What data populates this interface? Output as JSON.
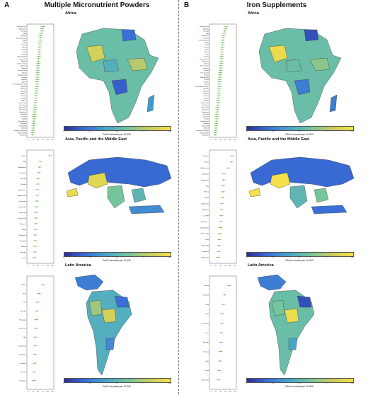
{
  "columns": [
    {
      "letter": "A",
      "title": "Multiple Micronutrient Powders"
    },
    {
      "letter": "B",
      "title": "Iron Supplements"
    }
  ],
  "colors": {
    "dot": "#59a93a",
    "frame": "#666666",
    "map_low": "#2b2f9a",
    "map_high": "#f5e04a",
    "land": "#ffffff"
  },
  "colorbar": {
    "label": "DALYs averted per 10,000",
    "ticks": [
      "0",
      "25",
      "50",
      "75",
      "100"
    ]
  },
  "chart_data": [
    {
      "type": "scatter",
      "column": "A",
      "region": "Africa",
      "title": "Africa",
      "xlim": [
        0,
        125
      ],
      "xticks": [
        "0",
        "25",
        "50",
        "75",
        "100",
        "125"
      ],
      "categories": [
        "Burkina Faso",
        "Mauritania",
        "Senegal",
        "Mali",
        "Gambia",
        "Guinea-Bissau",
        "Niger",
        "Chad",
        "Guinea",
        "Benin",
        "Ghana",
        "Togo",
        "Liberia",
        "Mozambique",
        "Cameroon",
        "Nigeria",
        "Sierra Leone",
        "Comoros",
        "Malawi",
        "Cote d'Ivoire",
        "Kenya",
        "Madagascar",
        "Congo",
        "Zambia",
        "Gabon",
        "Central African Rep.",
        "Uganda",
        "Ethiopia",
        "Rwanda",
        "Tanzania",
        "Eritrea",
        "Lesotho",
        "Angola",
        "Cape Verde",
        "Sao Tome",
        "DR Congo",
        "Botswana",
        "Zimbabwe",
        "Burundi",
        "Somalia",
        "Sudan",
        "South Africa",
        "Namibia",
        "Swaziland",
        "Djibouti",
        "Equatorial Guinea",
        "South Sudan",
        "Mauritius"
      ],
      "values": [
        78,
        72,
        70,
        67,
        64,
        63,
        62,
        61,
        60,
        59,
        58,
        57,
        56,
        55,
        54,
        53,
        52,
        51,
        50,
        49,
        49,
        48,
        47,
        46,
        45,
        45,
        44,
        43,
        42,
        41,
        40,
        39,
        38,
        37,
        36,
        35,
        34,
        33,
        32,
        31,
        30,
        29,
        28,
        27,
        26,
        25,
        24,
        22
      ]
    },
    {
      "type": "scatter",
      "column": "A",
      "region": "Asia, Pacific and the Middle East",
      "title": "Asia, Pacific and the Middle East",
      "xlim": [
        0,
        125
      ],
      "xticks": [
        "0",
        "25",
        "50",
        "75",
        "100",
        "125"
      ],
      "categories": [
        "Yemen",
        "India",
        "Bangladesh",
        "Cambodia",
        "Lao PDR",
        "Pakistan",
        "Solomon Is.",
        "Afghanistan",
        "Kyrgyzstan",
        "Uzbekistan",
        "Papua NG",
        "Timor-Leste",
        "Indonesia",
        "Nepal",
        "Philippines",
        "Mongolia",
        "Bhutan",
        "Tajikistan",
        "China"
      ],
      "values": [
        112,
        62,
        58,
        55,
        52,
        50,
        48,
        46,
        44,
        42,
        41,
        40,
        39,
        38,
        37,
        36,
        35,
        34,
        32
      ]
    },
    {
      "type": "scatter",
      "column": "A",
      "region": "Latin America",
      "title": "Latin America",
      "xlim": [
        0,
        125
      ],
      "xticks": [
        "0",
        "25",
        "50",
        "75",
        "100",
        "125"
      ],
      "categories": [
        "Bolivia",
        "Haiti",
        "Peru",
        "Ecuador",
        "Nicaragua",
        "Saint Lucia",
        "Cuba",
        "Guatemala",
        "Dominican",
        "Paraguay",
        "Colombia",
        "Honduras"
      ],
      "values": [
        78,
        55,
        48,
        44,
        42,
        40,
        38,
        36,
        34,
        32,
        30,
        28
      ]
    },
    {
      "type": "scatter",
      "column": "B",
      "region": "Africa",
      "title": "Africa",
      "xlim": [
        0,
        125
      ],
      "xticks": [
        "0",
        "25",
        "50",
        "75",
        "100",
        "125"
      ],
      "categories": [
        "Burkina Faso",
        "Ethiopia",
        "Senegal",
        "Mali",
        "Mauritania",
        "Gambia",
        "Guinea-Bissau",
        "Niger",
        "Chad",
        "Guinea",
        "Benin",
        "Ghana",
        "Togo",
        "Liberia",
        "Mozambique",
        "Cameroon",
        "Nigeria",
        "Sierra Leone",
        "Comoros",
        "Malawi",
        "Cote d'Ivoire",
        "Kenya",
        "Madagascar",
        "Congo",
        "Zambia",
        "Gabon",
        "Central African Rep.",
        "Uganda",
        "Rwanda",
        "Tanzania",
        "Eritrea",
        "Lesotho",
        "Angola",
        "Cape Verde",
        "Sao Tome",
        "DR Congo",
        "Botswana",
        "Zimbabwe",
        "Burundi",
        "Somalia",
        "Sudan",
        "South Africa",
        "Namibia",
        "Swaziland",
        "Djibouti",
        "Equatorial Guinea",
        "South Sudan",
        "Mauritius"
      ],
      "values": [
        80,
        76,
        72,
        69,
        66,
        64,
        63,
        62,
        61,
        60,
        59,
        58,
        57,
        56,
        55,
        54,
        53,
        52,
        51,
        50,
        49,
        48,
        47,
        46,
        45,
        44,
        44,
        43,
        42,
        41,
        40,
        39,
        38,
        37,
        36,
        35,
        34,
        33,
        32,
        31,
        30,
        29,
        28,
        27,
        26,
        25,
        24,
        22
      ]
    },
    {
      "type": "scatter",
      "column": "B",
      "region": "Asia, Pacific and the Middle East",
      "title": "Asia, Pacific and the Middle East",
      "xlim": [
        0,
        125
      ],
      "xticks": [
        "0",
        "25",
        "50",
        "75",
        "100",
        "125"
      ],
      "categories": [
        "Pakistan",
        "Yemen",
        "Afghanistan",
        "Cambodia",
        "Kyrgyzstan",
        "India",
        "Bhutan",
        "Nepal",
        "Uzbekistan",
        "Myanmar",
        "Lao PDR",
        "Solomon Is.",
        "Bangladesh",
        "Timor-Leste",
        "China",
        "Papua NG",
        "Indonesia",
        "Philippines"
      ],
      "values": [
        110,
        108,
        90,
        68,
        66,
        64,
        62,
        60,
        58,
        56,
        54,
        52,
        50,
        46,
        44,
        42,
        40,
        38
      ]
    },
    {
      "type": "scatter",
      "column": "B",
      "region": "Latin America",
      "title": "Latin America",
      "xlim": [
        0,
        125
      ],
      "xticks": [
        "0",
        "25",
        "50",
        "75",
        "100",
        "125"
      ],
      "categories": [
        "Bolivia",
        "Panama",
        "Haiti",
        "Cuba",
        "Venezuela",
        "Peru",
        "Ecuador",
        "Uruguay",
        "Chile",
        "Brazil",
        "Guatemala"
      ],
      "values": [
        95,
        72,
        65,
        60,
        57,
        54,
        52,
        50,
        47,
        44,
        40
      ]
    }
  ]
}
